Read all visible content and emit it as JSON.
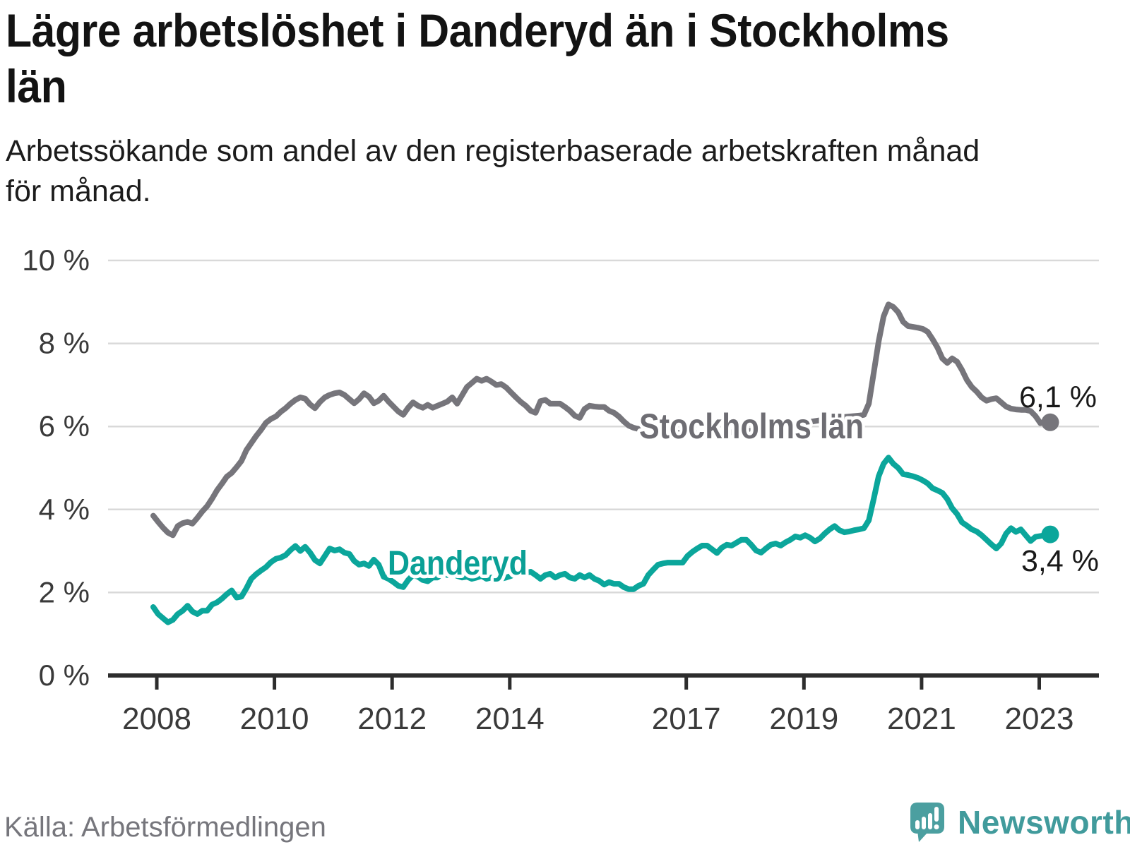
{
  "header": {
    "title_line1": "Lägre arbetslöshet i Danderyd än i Stockholms",
    "title_line2": "län",
    "subtitle_line1": "Arbetssökande som andel av den registerbaserade arbetskraften månad",
    "subtitle_line2": "för månad."
  },
  "footer": {
    "source": "Källa: Arbetsförmedlingen",
    "brand": "Newsworthy",
    "logo_icon": "bar-chart-speech-bubble-icon"
  },
  "colors": {
    "grid": "#d9d9d9",
    "axis": "#2d2d2d",
    "tick_text": "#3a3a3a",
    "value_text": "#191919",
    "brand_teal": "#419b9c"
  },
  "chart_data": {
    "type": "line",
    "title": "Lägre arbetslöshet i Danderyd än i Stockholms län",
    "subtitle": "Arbetssökande som andel av den registerbaserade arbetskraften månad för månad.",
    "xlabel": "",
    "ylabel": "",
    "unit": "%",
    "frequency": "monthly",
    "x_start": "2008-01",
    "x_end": "2023-04",
    "ylim": [
      0,
      10
    ],
    "grid": "horizontal-only",
    "legend": "inline-series-labels",
    "yticks": [
      {
        "value": 10,
        "label": "10 %"
      },
      {
        "value": 8,
        "label": "8 %"
      },
      {
        "value": 6,
        "label": "6 %"
      },
      {
        "value": 4,
        "label": "4 %"
      },
      {
        "value": 2,
        "label": "2 %"
      },
      {
        "value": 0,
        "label": "0 %"
      }
    ],
    "xticks": [
      {
        "year": 2008,
        "label": "2008"
      },
      {
        "year": 2010,
        "label": "2010"
      },
      {
        "year": 2012,
        "label": "2012"
      },
      {
        "year": 2014,
        "label": "2014"
      },
      {
        "year": 2017,
        "label": "2017"
      },
      {
        "year": 2019,
        "label": "2019"
      },
      {
        "year": 2021,
        "label": "2021"
      },
      {
        "year": 2023,
        "label": "2023"
      }
    ],
    "series": [
      {
        "name": "Stockholms län",
        "color": "#76757b",
        "label_color": "#6e6d73",
        "end_label": "6,1 %",
        "end_value": 6.1,
        "values": [
          3.85,
          3.7,
          3.56,
          3.44,
          3.38,
          3.6,
          3.67,
          3.7,
          3.66,
          3.8,
          3.95,
          4.08,
          4.26,
          4.46,
          4.62,
          4.79,
          4.88,
          5.02,
          5.17,
          5.43,
          5.6,
          5.77,
          5.92,
          6.09,
          6.18,
          6.24,
          6.35,
          6.44,
          6.55,
          6.64,
          6.7,
          6.67,
          6.53,
          6.44,
          6.59,
          6.7,
          6.76,
          6.8,
          6.82,
          6.76,
          6.66,
          6.56,
          6.66,
          6.8,
          6.72,
          6.56,
          6.62,
          6.74,
          6.6,
          6.48,
          6.36,
          6.28,
          6.45,
          6.58,
          6.5,
          6.45,
          6.52,
          6.45,
          6.5,
          6.55,
          6.6,
          6.7,
          6.55,
          6.75,
          6.95,
          7.05,
          7.15,
          7.1,
          7.15,
          7.08,
          7.0,
          7.02,
          6.94,
          6.82,
          6.7,
          6.59,
          6.5,
          6.38,
          6.33,
          6.61,
          6.64,
          6.55,
          6.55,
          6.55,
          6.47,
          6.38,
          6.26,
          6.21,
          6.42,
          6.5,
          6.48,
          6.47,
          6.47,
          6.38,
          6.33,
          6.24,
          6.12,
          6.02,
          5.97,
          5.94,
          5.92,
          5.9,
          5.88,
          5.87,
          5.86,
          5.86,
          5.85,
          5.85,
          5.85,
          5.84,
          5.84,
          5.83,
          5.83,
          5.82,
          5.82,
          5.83,
          5.84,
          5.85,
          5.86,
          5.88,
          5.88,
          5.89,
          5.9,
          5.91,
          5.92,
          5.93,
          5.95,
          5.97,
          5.99,
          6.01,
          6.03,
          6.05,
          6.07,
          6.09,
          6.11,
          6.13,
          6.15,
          6.17,
          6.19,
          6.21,
          6.22,
          6.23,
          6.24,
          6.25,
          6.26,
          6.28,
          6.55,
          7.3,
          8.05,
          8.65,
          8.94,
          8.88,
          8.75,
          8.52,
          8.42,
          8.4,
          8.38,
          8.35,
          8.28,
          8.1,
          7.9,
          7.64,
          7.53,
          7.64,
          7.56,
          7.36,
          7.12,
          6.95,
          6.84,
          6.7,
          6.62,
          6.66,
          6.68,
          6.58,
          6.48,
          6.43,
          6.41,
          6.4,
          6.4,
          6.37,
          6.25,
          6.08,
          6.12,
          6.1
        ]
      },
      {
        "name": "Danderyd",
        "color": "#0ba69b",
        "label_color": "#0aa096",
        "end_label": "3,4 %",
        "end_value": 3.4,
        "values": [
          1.65,
          1.48,
          1.38,
          1.28,
          1.34,
          1.48,
          1.56,
          1.68,
          1.54,
          1.48,
          1.56,
          1.56,
          1.71,
          1.76,
          1.85,
          1.96,
          2.05,
          1.88,
          1.9,
          2.1,
          2.33,
          2.44,
          2.53,
          2.61,
          2.73,
          2.81,
          2.84,
          2.9,
          3.02,
          3.12,
          3.0,
          3.1,
          2.96,
          2.78,
          2.7,
          2.88,
          3.06,
          3.01,
          3.04,
          2.96,
          2.93,
          2.76,
          2.67,
          2.7,
          2.64,
          2.79,
          2.67,
          2.38,
          2.33,
          2.25,
          2.16,
          2.13,
          2.3,
          2.42,
          2.38,
          2.3,
          2.27,
          2.36,
          2.36,
          2.47,
          2.42,
          2.45,
          2.4,
          2.36,
          2.38,
          2.33,
          2.36,
          2.4,
          2.33,
          2.36,
          2.33,
          2.33,
          2.36,
          2.4,
          2.47,
          2.55,
          2.47,
          2.5,
          2.42,
          2.33,
          2.42,
          2.45,
          2.36,
          2.42,
          2.45,
          2.36,
          2.33,
          2.42,
          2.36,
          2.42,
          2.33,
          2.28,
          2.19,
          2.25,
          2.21,
          2.21,
          2.13,
          2.08,
          2.08,
          2.16,
          2.21,
          2.42,
          2.55,
          2.67,
          2.7,
          2.72,
          2.72,
          2.72,
          2.72,
          2.88,
          2.98,
          3.06,
          3.13,
          3.13,
          3.04,
          2.95,
          3.08,
          3.15,
          3.13,
          3.2,
          3.27,
          3.27,
          3.15,
          3.01,
          2.96,
          3.06,
          3.15,
          3.18,
          3.13,
          3.21,
          3.27,
          3.35,
          3.32,
          3.38,
          3.32,
          3.23,
          3.3,
          3.42,
          3.52,
          3.6,
          3.5,
          3.45,
          3.47,
          3.5,
          3.52,
          3.55,
          3.74,
          4.26,
          4.8,
          5.1,
          5.25,
          5.1,
          5.0,
          4.85,
          4.83,
          4.8,
          4.76,
          4.7,
          4.63,
          4.51,
          4.46,
          4.4,
          4.25,
          4.03,
          3.89,
          3.69,
          3.61,
          3.52,
          3.47,
          3.38,
          3.27,
          3.16,
          3.06,
          3.18,
          3.42,
          3.55,
          3.46,
          3.52,
          3.38,
          3.24,
          3.34,
          3.36,
          3.38,
          3.4
        ]
      }
    ]
  }
}
